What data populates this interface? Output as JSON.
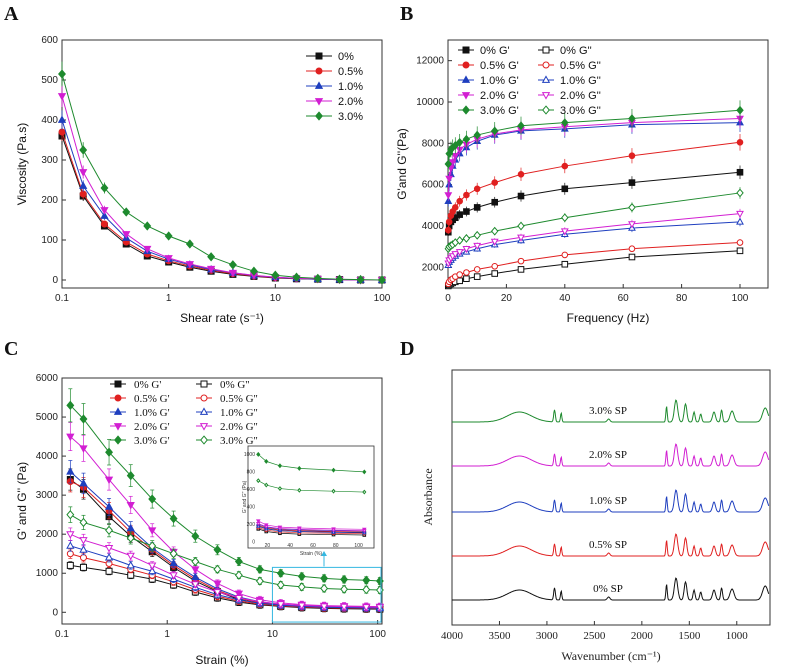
{
  "panel_labels": [
    "A",
    "B",
    "C",
    "D"
  ],
  "chart_data": [
    {
      "id": "A",
      "type": "line",
      "xscale": "log",
      "xlabel": "Shear rate (s⁻¹)",
      "ylabel": "Viscosity (Pa.s)",
      "xlim": [
        0.1,
        100
      ],
      "ylim": [
        -20,
        600
      ],
      "xticks": [
        "0.1",
        "1",
        "10",
        "100"
      ],
      "yticks": [
        0,
        100,
        200,
        300,
        400,
        500,
        600
      ],
      "x": [
        0.1,
        0.158,
        0.25,
        0.4,
        0.63,
        1.0,
        1.58,
        2.5,
        4.0,
        6.3,
        10,
        15.8,
        25,
        40,
        63,
        100
      ],
      "legend_position": "top-right",
      "series": [
        {
          "name": "0%",
          "color": "#111111",
          "marker": "square",
          "values": [
            360,
            210,
            135,
            90,
            60,
            45,
            32,
            22,
            14,
            9,
            5,
            3,
            2,
            1,
            0,
            0
          ]
        },
        {
          "name": "0.5%",
          "color": "#e02020",
          "marker": "circle",
          "values": [
            370,
            215,
            140,
            95,
            65,
            48,
            35,
            24,
            16,
            10,
            6,
            4,
            2,
            1,
            0,
            0
          ]
        },
        {
          "name": "1.0%",
          "color": "#1f3fbf",
          "marker": "triangle-up",
          "values": [
            400,
            235,
            160,
            105,
            72,
            52,
            38,
            26,
            18,
            11,
            7,
            4,
            2,
            1,
            0,
            0
          ]
        },
        {
          "name": "2.0%",
          "color": "#d21fd2",
          "marker": "triangle-down",
          "values": [
            460,
            270,
            175,
            115,
            78,
            55,
            40,
            28,
            18,
            12,
            7,
            4,
            3,
            1,
            0,
            0
          ]
        },
        {
          "name": "3.0%",
          "color": "#1e8a2e",
          "marker": "diamond",
          "values": [
            515,
            325,
            230,
            170,
            135,
            110,
            90,
            58,
            38,
            22,
            12,
            7,
            4,
            2,
            1,
            0
          ]
        }
      ]
    },
    {
      "id": "B",
      "type": "line",
      "xlabel": "Frequency (Hz)",
      "ylabel": "G'and G''(Pa)",
      "xlim": [
        0,
        100
      ],
      "ylim": [
        1000,
        13000
      ],
      "xticks": [
        0,
        20,
        40,
        60,
        80,
        100
      ],
      "yticks": [
        2000,
        4000,
        6000,
        8000,
        10000,
        12000
      ],
      "x": [
        0.1,
        0.4,
        1.0,
        1.6,
        2.5,
        4.0,
        6.3,
        10,
        16,
        25,
        40,
        63,
        100
      ],
      "legend_position": "top-left",
      "series": [
        {
          "name": "0% G'",
          "color": "#111111",
          "marker": "square",
          "filled": true,
          "values": [
            3700,
            4000,
            4200,
            4300,
            4400,
            4550,
            4700,
            4900,
            5150,
            5450,
            5800,
            6100,
            6600
          ]
        },
        {
          "name": "0% G''",
          "color": "#111111",
          "marker": "square",
          "filled": false,
          "values": [
            1100,
            1150,
            1200,
            1250,
            1300,
            1350,
            1450,
            1550,
            1700,
            1900,
            2150,
            2500,
            2800
          ]
        },
        {
          "name": "0.5% G'",
          "color": "#e02020",
          "marker": "circle",
          "filled": true,
          "values": [
            3800,
            4200,
            4500,
            4700,
            4900,
            5200,
            5500,
            5800,
            6100,
            6500,
            6900,
            7400,
            8050
          ]
        },
        {
          "name": "0.5% G''",
          "color": "#e02020",
          "marker": "circle",
          "filled": false,
          "values": [
            1200,
            1300,
            1400,
            1450,
            1550,
            1650,
            1750,
            1900,
            2050,
            2300,
            2600,
            2900,
            3200
          ]
        },
        {
          "name": "1.0% G'",
          "color": "#1f3fbf",
          "marker": "triangle-up",
          "filled": true,
          "values": [
            5200,
            6000,
            6500,
            6900,
            7200,
            7500,
            7800,
            8100,
            8400,
            8600,
            8700,
            8900,
            9000
          ]
        },
        {
          "name": "1.0% G''",
          "color": "#1f3fbf",
          "marker": "triangle-up",
          "filled": false,
          "values": [
            2100,
            2250,
            2350,
            2450,
            2550,
            2650,
            2750,
            2900,
            3100,
            3300,
            3600,
            3900,
            4200
          ]
        },
        {
          "name": "2.0% G'",
          "color": "#d21fd2",
          "marker": "triangle-down",
          "filled": true,
          "values": [
            5500,
            6300,
            6800,
            7100,
            7400,
            7700,
            7950,
            8200,
            8450,
            8650,
            8800,
            9000,
            9200
          ]
        },
        {
          "name": "2.0% G''",
          "color": "#d21fd2",
          "marker": "triangle-down",
          "filled": false,
          "values": [
            2200,
            2350,
            2450,
            2550,
            2650,
            2750,
            2900,
            3050,
            3250,
            3450,
            3750,
            4100,
            4600
          ]
        },
        {
          "name": "3.0% G'",
          "color": "#1e8a2e",
          "marker": "diamond",
          "filled": true,
          "values": [
            7000,
            7500,
            7700,
            7800,
            7900,
            8050,
            8200,
            8400,
            8600,
            8850,
            9000,
            9200,
            9600
          ]
        },
        {
          "name": "3.0% G''",
          "color": "#1e8a2e",
          "marker": "diamond",
          "filled": false,
          "values": [
            2900,
            3000,
            3050,
            3100,
            3200,
            3300,
            3400,
            3550,
            3750,
            4000,
            4400,
            4900,
            5600
          ]
        }
      ]
    },
    {
      "id": "C",
      "type": "line",
      "xscale": "log",
      "xlabel": "Strain (%)",
      "ylabel": "G' and G'' (Pa)",
      "xlim": [
        0.1,
        110
      ],
      "ylim": [
        -300,
        6000
      ],
      "xticks": [
        "0.1",
        "1",
        "10",
        "100"
      ],
      "yticks": [
        0,
        1000,
        2000,
        3000,
        4000,
        5000,
        6000
      ],
      "x": [
        0.12,
        0.16,
        0.28,
        0.45,
        0.72,
        1.15,
        1.85,
        3.0,
        4.8,
        7.6,
        12,
        19,
        31,
        48,
        78,
        105
      ],
      "legend_position": "top-left",
      "series": [
        {
          "name": "0% G'",
          "color": "#111111",
          "marker": "square",
          "filled": true,
          "values": [
            3400,
            3150,
            2450,
            1950,
            1550,
            1150,
            800,
            530,
            330,
            230,
            180,
            150,
            130,
            120,
            115,
            110
          ]
        },
        {
          "name": "0% G''",
          "color": "#111111",
          "marker": "square",
          "filled": false,
          "values": [
            1200,
            1150,
            1050,
            950,
            850,
            700,
            520,
            370,
            260,
            190,
            150,
            120,
            100,
            90,
            85,
            80
          ]
        },
        {
          "name": "0.5% G'",
          "color": "#e02020",
          "marker": "circle",
          "filled": true,
          "values": [
            3350,
            3200,
            2600,
            2050,
            1600,
            1200,
            850,
            560,
            360,
            250,
            190,
            160,
            140,
            130,
            120,
            115
          ]
        },
        {
          "name": "0.5% G''",
          "color": "#e02020",
          "marker": "circle",
          "filled": false,
          "values": [
            1500,
            1400,
            1250,
            1100,
            950,
            780,
            580,
            410,
            290,
            210,
            165,
            135,
            115,
            105,
            100,
            95
          ]
        },
        {
          "name": "1.0% G'",
          "color": "#1f3fbf",
          "marker": "triangle-up",
          "filled": true,
          "values": [
            3600,
            3300,
            2700,
            2150,
            1650,
            1250,
            900,
            600,
            390,
            270,
            205,
            170,
            150,
            140,
            130,
            125
          ]
        },
        {
          "name": "1.0% G''",
          "color": "#1f3fbf",
          "marker": "triangle-up",
          "filled": false,
          "values": [
            1700,
            1600,
            1400,
            1200,
            1050,
            850,
            640,
            450,
            320,
            230,
            180,
            150,
            130,
            120,
            110,
            105
          ]
        },
        {
          "name": "2.0% G'",
          "color": "#d21fd2",
          "marker": "triangle-down",
          "filled": true,
          "values": [
            4500,
            4200,
            3400,
            2750,
            2100,
            1550,
            1100,
            740,
            480,
            320,
            240,
            195,
            170,
            160,
            150,
            145
          ]
        },
        {
          "name": "2.0% G''",
          "color": "#d21fd2",
          "marker": "triangle-down",
          "filled": false,
          "values": [
            2000,
            1850,
            1650,
            1450,
            1200,
            950,
            720,
            520,
            370,
            270,
            210,
            175,
            155,
            145,
            135,
            130
          ]
        },
        {
          "name": "3.0% G'",
          "color": "#1e8a2e",
          "marker": "diamond",
          "filled": true,
          "values": [
            5300,
            4950,
            4100,
            3500,
            2900,
            2400,
            1950,
            1600,
            1300,
            1100,
            1000,
            920,
            870,
            840,
            820,
            800
          ]
        },
        {
          "name": "3.0% G''",
          "color": "#1e8a2e",
          "marker": "diamond",
          "filled": false,
          "values": [
            2500,
            2300,
            2100,
            1900,
            1700,
            1500,
            1300,
            1100,
            950,
            800,
            700,
            650,
            610,
            590,
            580,
            570
          ]
        }
      ],
      "inset": {
        "xlabel": "Strain (%)",
        "ylabel": "G' and G'' (Pa)",
        "xticks": [
          20,
          40,
          60,
          80,
          100
        ],
        "yticks": [
          0,
          200,
          400,
          600,
          800,
          1000
        ],
        "highlight_color": "#34b7e0"
      }
    },
    {
      "id": "D",
      "type": "line",
      "xlabel": "Wavenumber (cm⁻¹)",
      "ylabel": "Absorbance",
      "xlim": [
        4000,
        650
      ],
      "xreversed": true,
      "xticks": [
        4000,
        3500,
        3000,
        2500,
        2000,
        1500,
        1000
      ],
      "yticks_shown": false,
      "series": [
        {
          "name": "0% SP",
          "color": "#111111"
        },
        {
          "name": "0.5% SP",
          "color": "#e02020"
        },
        {
          "name": "1.0% SP",
          "color": "#1f3fbf"
        },
        {
          "name": "2.0% SP",
          "color": "#d21fd2"
        },
        {
          "name": "3.0% SP",
          "color": "#1e8a2e"
        }
      ]
    }
  ]
}
